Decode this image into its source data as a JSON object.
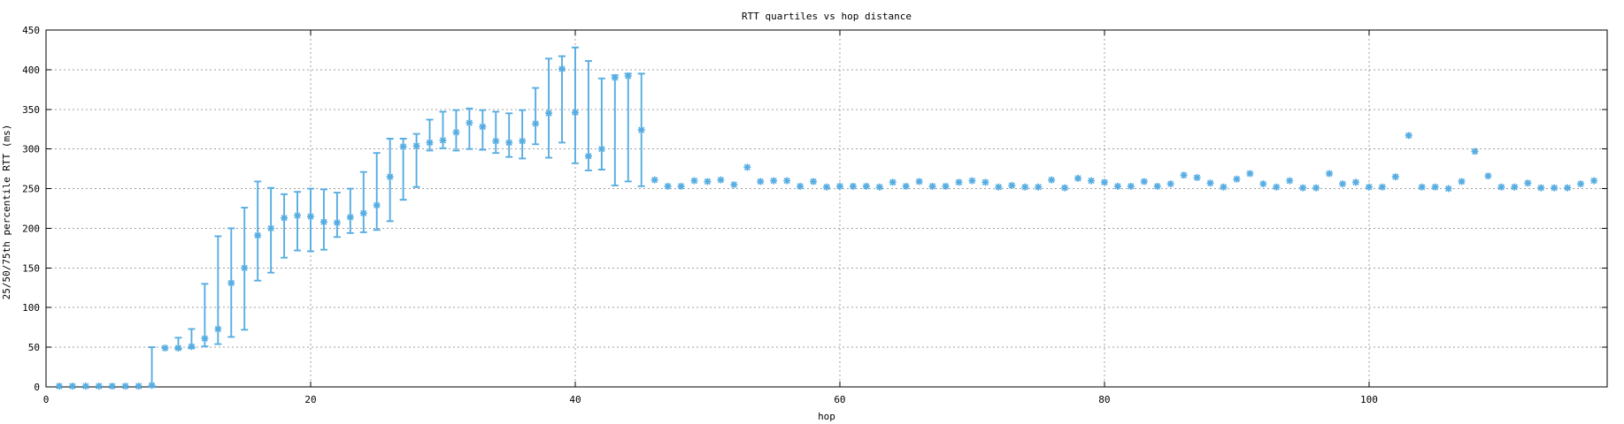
{
  "colors": {
    "series": "#57ade2",
    "grid": "#a0a0a0",
    "axis": "#000000",
    "background": "#ffffff"
  },
  "chart_data": {
    "type": "scatter",
    "title": "RTT quartiles vs hop distance",
    "xlabel": "hop",
    "ylabel": "25/50/75th percentile RTT (ms)",
    "xlim": [
      0,
      118
    ],
    "ylim": [
      0,
      450
    ],
    "xticks": [
      0,
      20,
      40,
      60,
      80,
      100
    ],
    "yticks": [
      0,
      50,
      100,
      150,
      200,
      250,
      300,
      350,
      400,
      450
    ],
    "grid": true,
    "legend_position": "none",
    "marker": "asterisk",
    "errorbars": "25th-75th percentile with caps",
    "points_format": [
      "hop",
      "median_ms",
      "q25_ms",
      "q75_ms"
    ],
    "points": [
      [
        1,
        1
      ],
      [
        2,
        1
      ],
      [
        3,
        1
      ],
      [
        4,
        1
      ],
      [
        5,
        1
      ],
      [
        6,
        1
      ],
      [
        7,
        1
      ],
      [
        8,
        2,
        0,
        50
      ],
      [
        9,
        49
      ],
      [
        10,
        49,
        48,
        62
      ],
      [
        11,
        51,
        49,
        73
      ],
      [
        12,
        61,
        51,
        130
      ],
      [
        13,
        73,
        54,
        190
      ],
      [
        14,
        131,
        63,
        200
      ],
      [
        15,
        150,
        72,
        226
      ],
      [
        16,
        191,
        134,
        259
      ],
      [
        17,
        200,
        144,
        251
      ],
      [
        18,
        213,
        163,
        243
      ],
      [
        19,
        216,
        172,
        246
      ],
      [
        20,
        215,
        171,
        250
      ],
      [
        21,
        208,
        173,
        249
      ],
      [
        22,
        207,
        189,
        245
      ],
      [
        23,
        214,
        194,
        250
      ],
      [
        24,
        219,
        195,
        271
      ],
      [
        25,
        229,
        198,
        295
      ],
      [
        26,
        265,
        209,
        313
      ],
      [
        27,
        303,
        236,
        313
      ],
      [
        28,
        304,
        252,
        319
      ],
      [
        29,
        308,
        298,
        337
      ],
      [
        30,
        311,
        301,
        347
      ],
      [
        31,
        321,
        298,
        349
      ],
      [
        32,
        333,
        300,
        351
      ],
      [
        33,
        328,
        299,
        349
      ],
      [
        34,
        310,
        295,
        347
      ],
      [
        35,
        308,
        290,
        345
      ],
      [
        36,
        310,
        288,
        349
      ],
      [
        37,
        332,
        306,
        377
      ],
      [
        38,
        345,
        289,
        414
      ],
      [
        39,
        401,
        308,
        417
      ],
      [
        40,
        346,
        282,
        428
      ],
      [
        41,
        291,
        273,
        411
      ],
      [
        42,
        300,
        274,
        389
      ],
      [
        43,
        390,
        254,
        393
      ],
      [
        44,
        392,
        259,
        395
      ],
      [
        45,
        324,
        253,
        395
      ],
      [
        46,
        261
      ],
      [
        47,
        253
      ],
      [
        48,
        253
      ],
      [
        49,
        260
      ],
      [
        50,
        259
      ],
      [
        51,
        261
      ],
      [
        52,
        255
      ],
      [
        53,
        277
      ],
      [
        54,
        259
      ],
      [
        55,
        260
      ],
      [
        56,
        260
      ],
      [
        57,
        253
      ],
      [
        58,
        259
      ],
      [
        59,
        252
      ],
      [
        60,
        253
      ],
      [
        61,
        253
      ],
      [
        62,
        253
      ],
      [
        63,
        252
      ],
      [
        64,
        258
      ],
      [
        65,
        253
      ],
      [
        66,
        259
      ],
      [
        67,
        253
      ],
      [
        68,
        253
      ],
      [
        69,
        258
      ],
      [
        70,
        260
      ],
      [
        71,
        258
      ],
      [
        72,
        252
      ],
      [
        73,
        254
      ],
      [
        74,
        252
      ],
      [
        75,
        252
      ],
      [
        76,
        261
      ],
      [
        77,
        251
      ],
      [
        78,
        263
      ],
      [
        79,
        260
      ],
      [
        80,
        258
      ],
      [
        81,
        253
      ],
      [
        82,
        253
      ],
      [
        83,
        259
      ],
      [
        84,
        253
      ],
      [
        85,
        256
      ],
      [
        86,
        267
      ],
      [
        87,
        264
      ],
      [
        88,
        257
      ],
      [
        89,
        252
      ],
      [
        90,
        262
      ],
      [
        91,
        269
      ],
      [
        92,
        256
      ],
      [
        93,
        252
      ],
      [
        94,
        260
      ],
      [
        95,
        251
      ],
      [
        96,
        251
      ],
      [
        97,
        269
      ],
      [
        98,
        256
      ],
      [
        99,
        258
      ],
      [
        100,
        252
      ],
      [
        101,
        252
      ],
      [
        102,
        265
      ],
      [
        103,
        317
      ],
      [
        104,
        252
      ],
      [
        105,
        252
      ],
      [
        106,
        250
      ],
      [
        107,
        259
      ],
      [
        108,
        297
      ],
      [
        109,
        266
      ],
      [
        110,
        252
      ],
      [
        111,
        252
      ],
      [
        112,
        257
      ],
      [
        113,
        251
      ],
      [
        114,
        251
      ],
      [
        115,
        251
      ],
      [
        116,
        256
      ],
      [
        117,
        260
      ]
    ]
  }
}
